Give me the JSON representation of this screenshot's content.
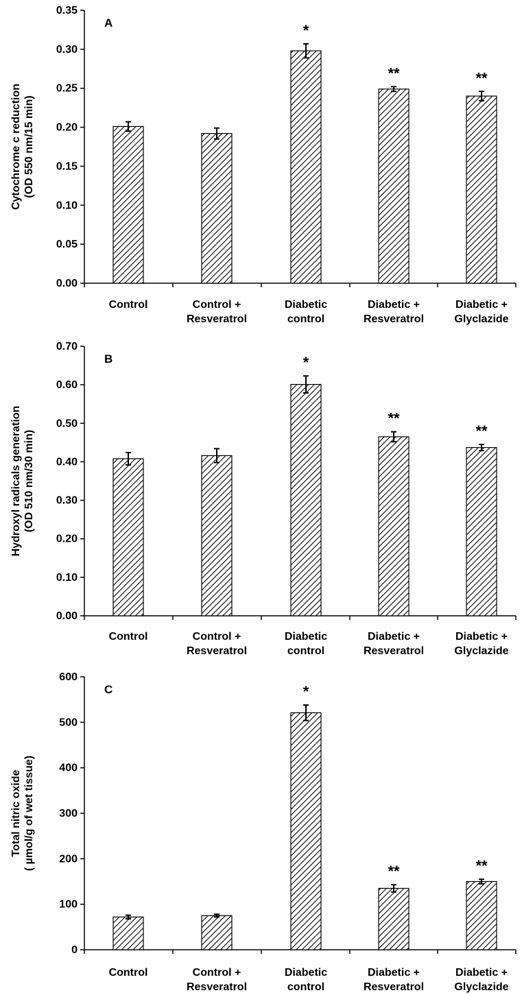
{
  "chart_data": [
    {
      "type": "bar",
      "panel_label": "A",
      "categories": [
        [
          "Control"
        ],
        [
          "Control +",
          "Resveratrol"
        ],
        [
          "Diabetic",
          "control"
        ],
        [
          "Diabetic +",
          "Resveratrol"
        ],
        [
          "Diabetic +",
          "Glyclazide"
        ]
      ],
      "values": [
        0.201,
        0.192,
        0.298,
        0.249,
        0.24
      ],
      "errors": [
        0.006,
        0.007,
        0.009,
        0.003,
        0.006
      ],
      "significance": [
        "",
        "",
        "*",
        "**",
        "**"
      ],
      "ylabel": [
        "Cytochrome c reduction",
        "(OD 550 nm/15 min)"
      ],
      "ylim": [
        0,
        0.35
      ],
      "yticks": [
        "0.00",
        "0.05",
        "0.10",
        "0.15",
        "0.20",
        "0.25",
        "0.30",
        "0.35"
      ],
      "grid": false,
      "bar_pattern": "diagonal-hatch"
    },
    {
      "type": "bar",
      "panel_label": "B",
      "categories": [
        [
          "Control"
        ],
        [
          "Control +",
          "Resveratrol"
        ],
        [
          "Diabetic",
          "control"
        ],
        [
          "Diabetic +",
          "Resveratrol"
        ],
        [
          "Diabetic +",
          "Glyclazide"
        ]
      ],
      "values": [
        0.408,
        0.416,
        0.601,
        0.465,
        0.437
      ],
      "errors": [
        0.016,
        0.018,
        0.022,
        0.013,
        0.008
      ],
      "significance": [
        "",
        "",
        "*",
        "**",
        "**"
      ],
      "ylabel": [
        "Hydroxyl radicals generation",
        "(OD 510 nm/30 min)"
      ],
      "ylim": [
        0,
        0.7
      ],
      "yticks": [
        "0.00",
        "0.10",
        "0.20",
        "0.30",
        "0.40",
        "0.50",
        "0.60",
        "0.70"
      ],
      "grid": false,
      "bar_pattern": "diagonal-hatch"
    },
    {
      "type": "bar",
      "panel_label": "C",
      "categories": [
        [
          "Control"
        ],
        [
          "Control +",
          "Resveratrol"
        ],
        [
          "Diabetic",
          "control"
        ],
        [
          "Diabetic +",
          "Resveratrol"
        ],
        [
          "Diabetic +",
          "Glyclazide"
        ]
      ],
      "values": [
        72,
        75,
        521,
        135,
        150
      ],
      "errors": [
        4,
        3,
        17,
        8,
        5
      ],
      "significance": [
        "",
        "",
        "*",
        "**",
        "**"
      ],
      "ylabel": [
        "Total nitric oxide",
        "( µmol/g of wet tissue)"
      ],
      "ylim": [
        0,
        600
      ],
      "yticks": [
        "0",
        "100",
        "200",
        "300",
        "400",
        "500",
        "600"
      ],
      "grid": false,
      "bar_pattern": "diagonal-hatch"
    }
  ]
}
